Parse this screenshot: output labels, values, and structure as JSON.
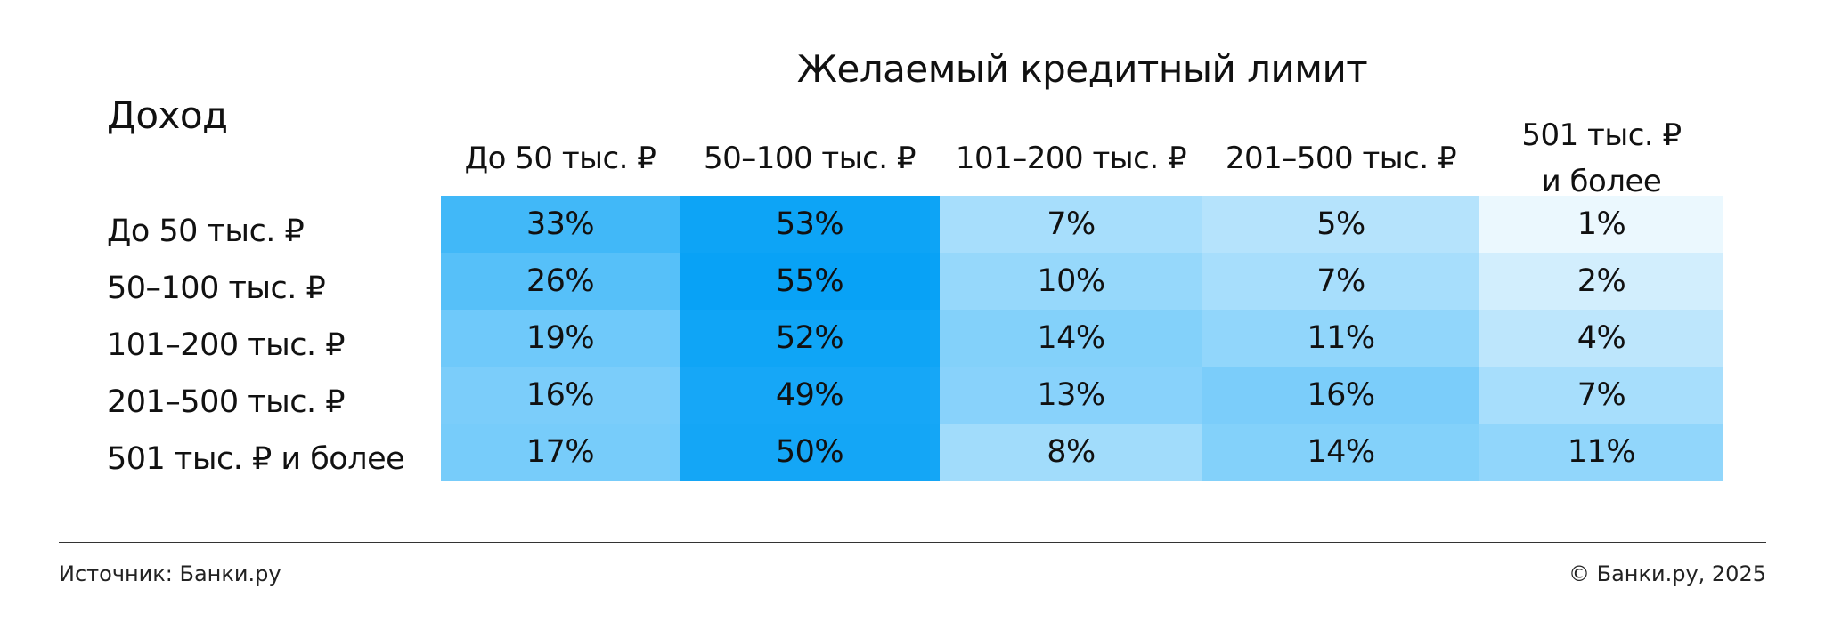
{
  "chart_data": {
    "type": "heatmap",
    "title": "Желаемый кредитный лимит",
    "row_axis_title": "Доход",
    "columns": [
      "До 50 тыс. ₽",
      "50–100 тыс. ₽",
      "101–200 тыс. ₽",
      "201–500 тыс. ₽",
      "501 тыс. ₽\nи более"
    ],
    "rows": [
      "До 50 тыс. ₽",
      "50–100 тыс. ₽",
      "101–200 тыс. ₽",
      "201–500 тыс. ₽",
      "501 тыс. ₽ и более"
    ],
    "unit": "%",
    "values": [
      [
        33,
        53,
        7,
        5,
        1
      ],
      [
        26,
        55,
        10,
        7,
        2
      ],
      [
        19,
        52,
        14,
        11,
        4
      ],
      [
        16,
        49,
        13,
        16,
        7
      ],
      [
        17,
        50,
        8,
        14,
        11
      ]
    ],
    "colors": {
      "low": "#ebf8fe",
      "high": "#08a2f6"
    }
  },
  "footer": {
    "source": "Источник: Банки.ру",
    "copyright": "© Банки.ру, 2025"
  }
}
